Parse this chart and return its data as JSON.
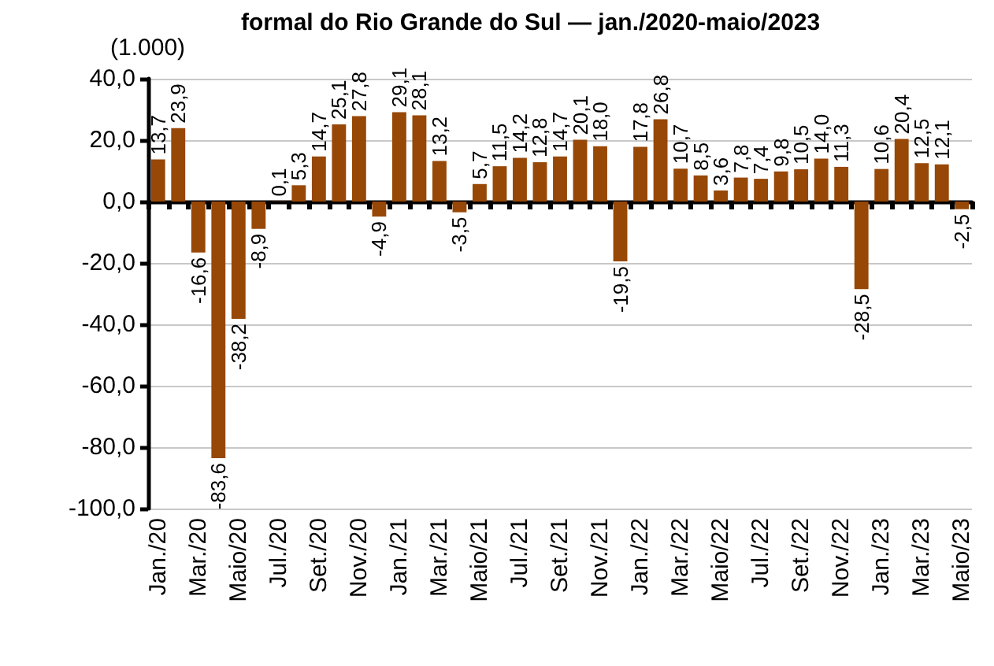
{
  "chart_data": {
    "type": "bar",
    "title": "formal do Rio Grande do Sul — jan./2020-maio/2023",
    "subtitle": "(1.000)",
    "categories": [
      "Jan./20",
      null,
      "Mar./20",
      null,
      "Maio/20",
      null,
      "Jul./20",
      null,
      "Set./20",
      null,
      "Nov./20",
      null,
      "Jan./21",
      null,
      "Mar./21",
      null,
      "Maio/21",
      null,
      "Jul./21",
      null,
      "Set./21",
      null,
      "Nov./21",
      null,
      "Jan./22",
      null,
      "Mar./22",
      null,
      "Maio/22",
      null,
      "Jul./22",
      null,
      "Set./22",
      null,
      "Nov./22",
      null,
      "Jan./23",
      null,
      "Mar./23",
      null,
      "Maio/23"
    ],
    "values": [
      13.7,
      23.9,
      -16.6,
      -83.6,
      -38.2,
      -8.9,
      0.1,
      5.3,
      14.7,
      25.1,
      27.8,
      -4.9,
      29.1,
      28.1,
      13.2,
      -3.5,
      5.7,
      11.5,
      14.2,
      12.8,
      14.7,
      20.1,
      18.0,
      -19.5,
      17.8,
      26.8,
      10.7,
      8.5,
      3.6,
      7.8,
      7.4,
      9.8,
      10.5,
      14.0,
      11.3,
      -28.5,
      10.6,
      20.4,
      12.5,
      12.1,
      -2.5
    ],
    "value_labels": [
      "13,7",
      "23,9",
      "-16,6",
      "-83,6",
      "-38,2",
      "-8,9",
      "0,1",
      "5,3",
      "14,7",
      "25,1",
      "27,8",
      "-4,9",
      "29,1",
      "28,1",
      "13,2",
      "-3,5",
      "5,7",
      "11,5",
      "14,2",
      "12,8",
      "14,7",
      "20,1",
      "18,0",
      "-19,5",
      "17,8",
      "26,8",
      "10,7",
      "8,5",
      "3,6",
      "7,8",
      "7,4",
      "9,8",
      "10,5",
      "14,0",
      "11,3",
      "-28,5",
      "10,6",
      "20,4",
      "12,5",
      "12,1",
      "-2,5"
    ],
    "color": "#974706",
    "ylim": [
      -100,
      40
    ],
    "yticks": [
      {
        "value": -100,
        "label": "-100,0"
      },
      {
        "value": -80,
        "label": "-80,0"
      },
      {
        "value": -60,
        "label": "-60,0"
      },
      {
        "value": -40,
        "label": "-40,0"
      },
      {
        "value": -20,
        "label": "-20,0"
      },
      {
        "value": 0,
        "label": "0,0"
      },
      {
        "value": 20,
        "label": "20,0"
      },
      {
        "value": 40,
        "label": "40,0"
      }
    ],
    "grid": "y"
  }
}
